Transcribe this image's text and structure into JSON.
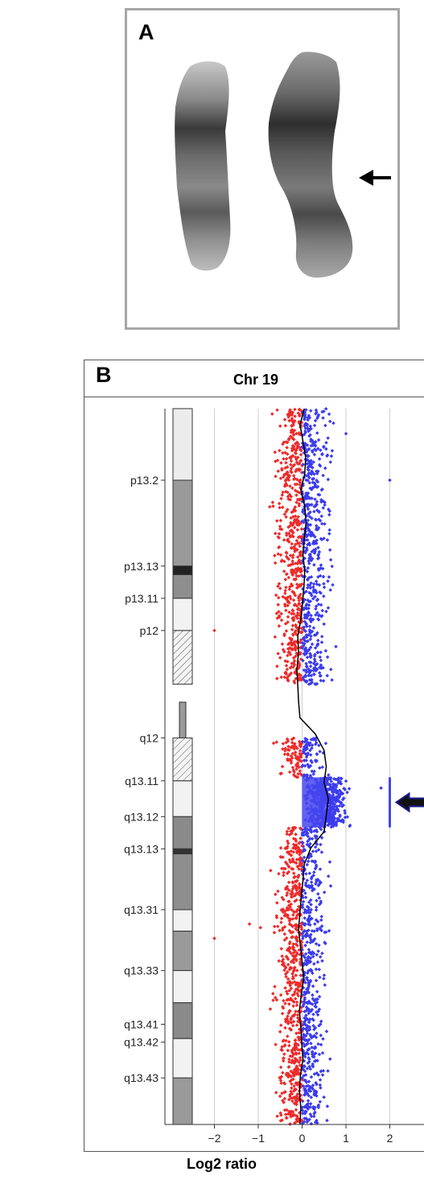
{
  "panel_a": {
    "label": "A"
  },
  "panel_b": {
    "label": "B"
  },
  "chart_data": {
    "type": "scatter",
    "title": "Chr 19",
    "xlabel": "Log2 ratio",
    "ylabel": "",
    "xlim": [
      -3,
      2.7
    ],
    "x_ticks": [
      -2,
      -1,
      0,
      1,
      2
    ],
    "x_tick_labels": [
      "−2",
      "−1",
      "0",
      "1",
      "2"
    ],
    "grid": "vertical",
    "positive_color": "#3b3bee",
    "negative_color": "#ee2a2a",
    "trend_color": "#000000",
    "gain_region_color": "#4646ee",
    "ideogram_bands": [
      "p13.2",
      "p13.13",
      "p13.11",
      "p12",
      "q12",
      "q13.11",
      "q13.12",
      "q13.13",
      "q13.31",
      "q13.33",
      "q13.41",
      "q13.42",
      "q13.43"
    ],
    "gain_region": {
      "from_band": "q13.11",
      "to_band": "q13.12",
      "mean_log2_ratio": 0.55
    },
    "trend_x": [
      0.05,
      -0.05,
      0.02,
      0.08,
      0.06,
      -0.03,
      0.06,
      0.09,
      0.05,
      0.02,
      0.06,
      0.04,
      0.01,
      -0.03,
      -0.1,
      -0.08,
      -0.12,
      -0.1,
      -0.08,
      -0.05,
      0.3,
      0.5,
      0.55,
      0.5,
      0.6,
      0.55,
      0.5,
      0.2,
      0.05,
      0.02,
      -0.02,
      -0.05,
      -0.08,
      -0.04,
      0.0,
      0.04,
      -0.02,
      -0.06,
      -0.03,
      -0.01,
      0.02,
      -0.04,
      -0.06,
      -0.03,
      -0.05
    ]
  }
}
